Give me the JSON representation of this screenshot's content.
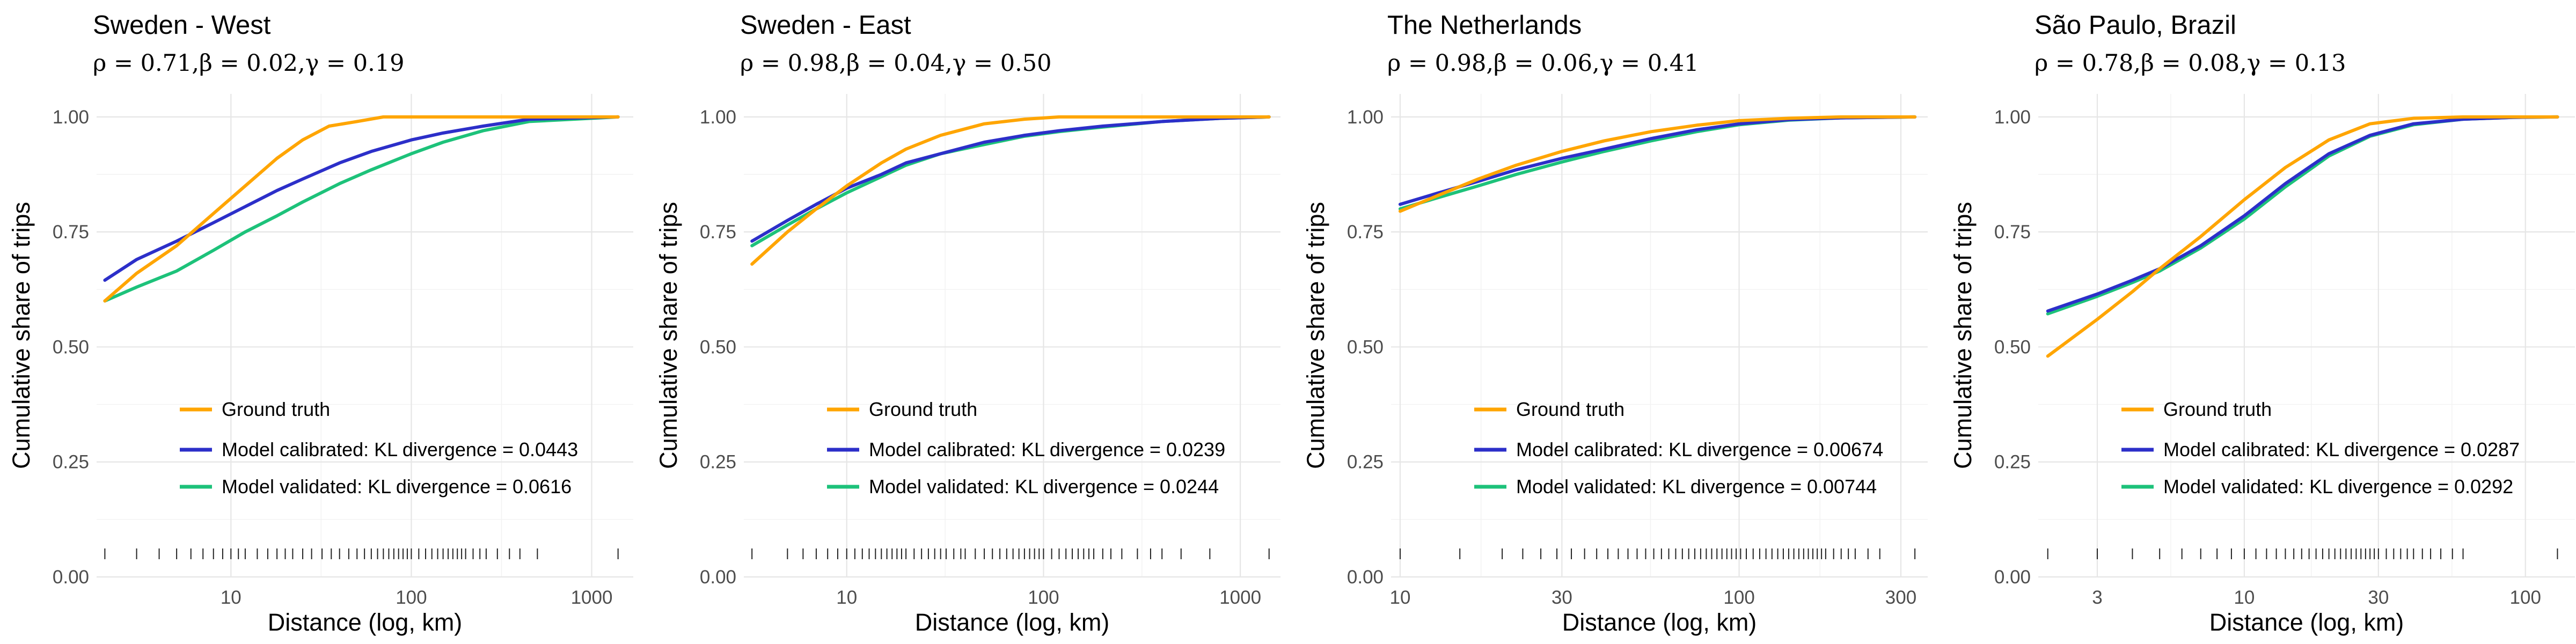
{
  "colors": {
    "ground_truth": "#FFA500",
    "model_calibrated": "#2C2FC9",
    "model_validated": "#1DC27A"
  },
  "chart_data": [
    {
      "type": "line",
      "title": "Sweden - West",
      "subtitle": "ρ = 0.71,β = 0.02,γ = 0.19",
      "xlabel": "Distance (log, km)",
      "ylabel": "Cumulative share of trips",
      "x_scale": "log",
      "xlim": [
        1.8,
        1700
      ],
      "ylim": [
        0,
        1.05
      ],
      "x_ticks": [
        10,
        100,
        1000
      ],
      "x_tick_labels": [
        "10",
        "100",
        "1000"
      ],
      "y_ticks": [
        0,
        0.25,
        0.5,
        0.75,
        1
      ],
      "y_tick_labels": [
        "0.00",
        "0.25",
        "0.50",
        "0.75",
        "1.00"
      ],
      "grid": true,
      "legend_position": "bottom-left",
      "series": [
        {
          "name": "Ground truth",
          "color": "#FFA500",
          "x": [
            2,
            3,
            5,
            8,
            12,
            18,
            25,
            35,
            50,
            70,
            100,
            150,
            300,
            1400
          ],
          "y": [
            0.6,
            0.66,
            0.72,
            0.79,
            0.85,
            0.91,
            0.95,
            0.98,
            0.99,
            1.0,
            1.0,
            1.0,
            1.0,
            1.0
          ]
        },
        {
          "name": "Model calibrated: KL divergence = 0.0443",
          "color": "#2C2FC9",
          "x": [
            2,
            3,
            5,
            8,
            12,
            18,
            25,
            40,
            60,
            100,
            150,
            250,
            450,
            1400
          ],
          "y": [
            0.645,
            0.69,
            0.73,
            0.77,
            0.805,
            0.84,
            0.865,
            0.9,
            0.925,
            0.95,
            0.965,
            0.98,
            0.995,
            1.0
          ]
        },
        {
          "name": "Model validated: KL divergence = 0.0616",
          "color": "#1DC27A",
          "x": [
            2,
            3,
            5,
            8,
            12,
            18,
            25,
            40,
            60,
            100,
            150,
            250,
            450,
            1400
          ],
          "y": [
            0.6,
            0.63,
            0.665,
            0.71,
            0.75,
            0.785,
            0.815,
            0.855,
            0.885,
            0.92,
            0.945,
            0.97,
            0.99,
            1.0
          ]
        }
      ],
      "rug_x": [
        2,
        3,
        4,
        5,
        6,
        7,
        8,
        9,
        10,
        11,
        12,
        14,
        16,
        18,
        20,
        22,
        25,
        28,
        32,
        36,
        40,
        45,
        50,
        55,
        60,
        65,
        70,
        75,
        80,
        85,
        90,
        95,
        100,
        110,
        120,
        130,
        140,
        150,
        160,
        170,
        180,
        190,
        200,
        220,
        240,
        260,
        300,
        350,
        400,
        500,
        1400
      ]
    },
    {
      "type": "line",
      "title": "Sweden - East",
      "subtitle": "ρ = 0.98,β = 0.04,γ = 0.50",
      "xlabel": "Distance (log, km)",
      "ylabel": "Cumulative share of trips",
      "x_scale": "log",
      "xlim": [
        3.0,
        1600
      ],
      "ylim": [
        0,
        1.05
      ],
      "x_ticks": [
        10,
        100,
        1000
      ],
      "x_tick_labels": [
        "10",
        "100",
        "1000"
      ],
      "y_ticks": [
        0,
        0.25,
        0.5,
        0.75,
        1
      ],
      "y_tick_labels": [
        "0.00",
        "0.25",
        "0.50",
        "0.75",
        "1.00"
      ],
      "grid": true,
      "legend_position": "bottom-left",
      "series": [
        {
          "name": "Ground truth",
          "color": "#FFA500",
          "x": [
            3.3,
            5,
            7,
            10,
            15,
            20,
            30,
            50,
            80,
            120,
            200,
            1400
          ],
          "y": [
            0.68,
            0.75,
            0.8,
            0.85,
            0.9,
            0.93,
            0.96,
            0.985,
            0.995,
            1.0,
            1.0,
            1.0
          ]
        },
        {
          "name": "Model calibrated: KL divergence = 0.0239",
          "color": "#2C2FC9",
          "x": [
            3.3,
            5,
            7,
            10,
            15,
            20,
            30,
            50,
            80,
            120,
            200,
            400,
            800,
            1400
          ],
          "y": [
            0.73,
            0.775,
            0.81,
            0.845,
            0.875,
            0.9,
            0.92,
            0.945,
            0.96,
            0.97,
            0.98,
            0.99,
            0.997,
            1.0
          ]
        },
        {
          "name": "Model validated: KL divergence = 0.0244",
          "color": "#1DC27A",
          "x": [
            3.3,
            5,
            7,
            10,
            15,
            20,
            30,
            50,
            80,
            120,
            200,
            400,
            800,
            1400
          ],
          "y": [
            0.72,
            0.765,
            0.8,
            0.835,
            0.87,
            0.895,
            0.92,
            0.94,
            0.958,
            0.968,
            0.978,
            0.99,
            0.997,
            1.0
          ]
        }
      ],
      "rug_x": [
        3.3,
        5,
        6,
        7,
        8,
        9,
        10,
        11,
        12,
        13,
        14,
        15,
        16,
        17,
        18,
        19,
        20,
        22,
        24,
        26,
        28,
        30,
        32,
        35,
        38,
        40,
        45,
        50,
        55,
        60,
        65,
        70,
        75,
        80,
        85,
        90,
        95,
        100,
        110,
        120,
        130,
        140,
        150,
        160,
        170,
        180,
        200,
        220,
        250,
        300,
        350,
        400,
        500,
        700,
        1400
      ]
    },
    {
      "type": "line",
      "title": "The Netherlands",
      "subtitle": "ρ = 0.98,β = 0.06,γ = 0.41",
      "xlabel": "Distance (log, km)",
      "ylabel": "Cumulative share of trips",
      "x_scale": "log",
      "xlim": [
        9.4,
        360
      ],
      "ylim": [
        0,
        1.05
      ],
      "x_ticks": [
        10,
        30,
        100,
        300
      ],
      "x_tick_labels": [
        "10",
        "30",
        "100",
        "300"
      ],
      "y_ticks": [
        0,
        0.25,
        0.5,
        0.75,
        1
      ],
      "y_tick_labels": [
        "0.00",
        "0.25",
        "0.50",
        "0.75",
        "1.00"
      ],
      "grid": true,
      "legend_position": "bottom-left",
      "series": [
        {
          "name": "Ground truth",
          "color": "#FFA500",
          "x": [
            10,
            13,
            17,
            22,
            30,
            40,
            55,
            75,
            100,
            140,
            200,
            330
          ],
          "y": [
            0.795,
            0.83,
            0.865,
            0.895,
            0.925,
            0.948,
            0.968,
            0.982,
            0.992,
            0.997,
            1.0,
            1.0
          ]
        },
        {
          "name": "Model calibrated: KL divergence = 0.00674",
          "color": "#2C2FC9",
          "x": [
            10,
            13,
            17,
            22,
            30,
            40,
            55,
            75,
            100,
            140,
            200,
            330
          ],
          "y": [
            0.81,
            0.835,
            0.86,
            0.885,
            0.91,
            0.93,
            0.953,
            0.972,
            0.985,
            0.994,
            0.998,
            1.0
          ]
        },
        {
          "name": "Model validated: KL divergence = 0.00744",
          "color": "#1DC27A",
          "x": [
            10,
            13,
            17,
            22,
            30,
            40,
            55,
            75,
            100,
            140,
            200,
            330
          ],
          "y": [
            0.8,
            0.825,
            0.85,
            0.875,
            0.902,
            0.925,
            0.948,
            0.968,
            0.983,
            0.993,
            0.998,
            1.0
          ]
        }
      ],
      "rug_x": [
        10,
        15,
        20,
        23,
        26,
        29,
        32,
        35,
        38,
        41,
        44,
        47,
        50,
        53,
        56,
        59,
        62,
        65,
        68,
        71,
        74,
        77,
        80,
        83,
        86,
        89,
        92,
        95,
        98,
        101,
        105,
        110,
        115,
        120,
        125,
        130,
        135,
        140,
        145,
        150,
        155,
        160,
        165,
        170,
        175,
        180,
        190,
        200,
        210,
        220,
        240,
        260,
        330
      ]
    },
    {
      "type": "line",
      "title": "São Paulo, Brazil",
      "subtitle": "ρ = 0.78,β = 0.08,γ = 0.13",
      "xlabel": "Distance (log, km)",
      "ylabel": "Cumulative share of trips",
      "x_scale": "log",
      "xlim": [
        1.85,
        150
      ],
      "ylim": [
        0,
        1.05
      ],
      "x_ticks": [
        3,
        10,
        30,
        100
      ],
      "x_tick_labels": [
        "3",
        "10",
        "30",
        "100"
      ],
      "y_ticks": [
        0,
        0.25,
        0.5,
        0.75,
        1
      ],
      "y_tick_labels": [
        "0.00",
        "0.25",
        "0.50",
        "0.75",
        "1.00"
      ],
      "grid": true,
      "legend_position": "bottom-left",
      "series": [
        {
          "name": "Ground truth",
          "color": "#FFA500",
          "x": [
            2,
            3,
            4,
            5,
            7,
            10,
            14,
            20,
            28,
            40,
            60,
            130
          ],
          "y": [
            0.48,
            0.56,
            0.62,
            0.67,
            0.74,
            0.82,
            0.89,
            0.95,
            0.985,
            0.997,
            1.0,
            1.0
          ]
        },
        {
          "name": "Model calibrated: KL divergence = 0.0287",
          "color": "#2C2FC9",
          "x": [
            2,
            3,
            4,
            5,
            7,
            10,
            14,
            20,
            28,
            40,
            60,
            90,
            130
          ],
          "y": [
            0.578,
            0.615,
            0.645,
            0.67,
            0.72,
            0.785,
            0.855,
            0.92,
            0.96,
            0.985,
            0.995,
            0.999,
            1.0
          ]
        },
        {
          "name": "Model validated: KL divergence = 0.0292",
          "color": "#1DC27A",
          "x": [
            2,
            3,
            4,
            5,
            7,
            10,
            14,
            20,
            28,
            40,
            60,
            90,
            130
          ],
          "y": [
            0.572,
            0.61,
            0.64,
            0.665,
            0.715,
            0.778,
            0.848,
            0.915,
            0.958,
            0.983,
            0.995,
            0.999,
            1.0
          ]
        }
      ],
      "rug_x": [
        2,
        3,
        4,
        5,
        6,
        7,
        8,
        9,
        10,
        11,
        12,
        13,
        14,
        15,
        16,
        17,
        18,
        19,
        20,
        21,
        22,
        23,
        24,
        25,
        26,
        27,
        28,
        29,
        30,
        32,
        34,
        36,
        38,
        40,
        43,
        46,
        50,
        55,
        60,
        130
      ]
    }
  ]
}
